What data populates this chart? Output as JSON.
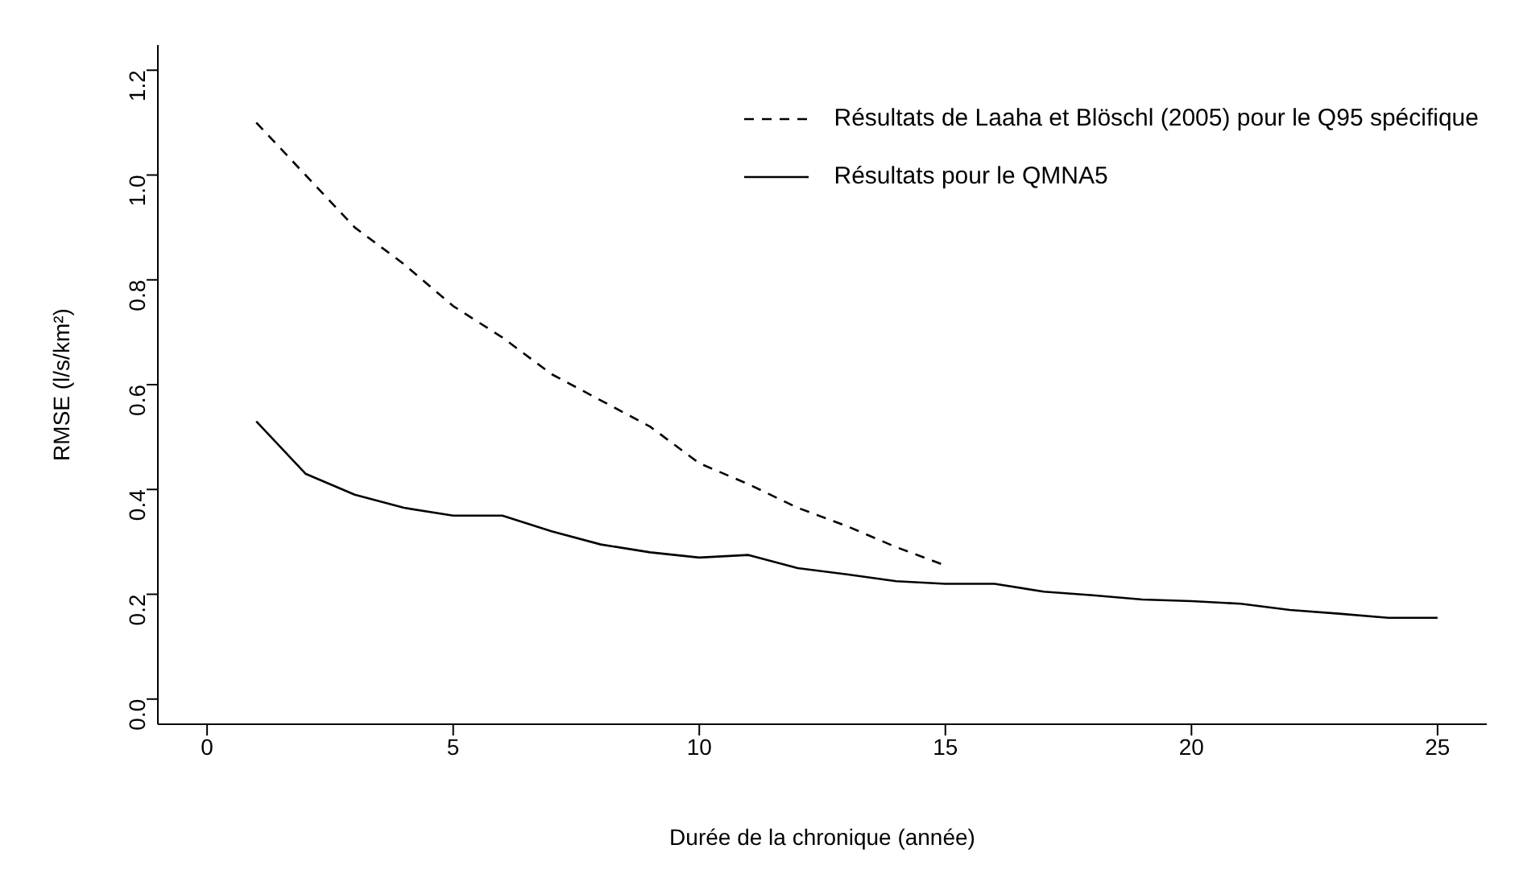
{
  "chart_data": {
    "type": "line",
    "xlabel": "Durée de la chronique (année)",
    "ylabel": "RMSE (l/s/km²)",
    "xlim": [
      -1,
      26
    ],
    "ylim": [
      -0.048,
      1.248
    ],
    "xticks": [
      0,
      5,
      10,
      15,
      20,
      25
    ],
    "yticks": [
      {
        "value": 0,
        "label": "0.0"
      },
      0.2,
      0.4,
      0.6,
      0.8,
      {
        "value": 1,
        "label": "1.0"
      },
      1.2
    ],
    "grid": false,
    "legend": "top right",
    "marker": "none",
    "series": [
      {
        "name": "Résultats de Laaha et Blöschl (2005) pour le Q95 spécifique",
        "color": "#000000",
        "line_style": "dashed",
        "x": [
          1,
          2,
          3,
          4,
          5,
          6,
          7,
          8,
          9,
          10,
          11,
          12,
          13,
          14,
          15
        ],
        "values": [
          1.1,
          1.0,
          0.9,
          0.83,
          0.75,
          0.69,
          0.62,
          0.57,
          0.52,
          0.45,
          0.41,
          0.365,
          0.33,
          0.29,
          0.255
        ]
      },
      {
        "name": "Résultats pour le QMNA5",
        "color": "#000000",
        "line_style": "solid",
        "x": [
          1,
          2,
          3,
          4,
          5,
          6,
          7,
          8,
          9,
          10,
          11,
          12,
          13,
          14,
          15,
          16,
          17,
          18,
          19,
          20,
          21,
          22,
          23,
          24,
          25
        ],
        "values": [
          0.53,
          0.43,
          0.39,
          0.365,
          0.35,
          0.35,
          0.32,
          0.295,
          0.28,
          0.27,
          0.275,
          0.25,
          0.238,
          0.225,
          0.22,
          0.22,
          0.205,
          0.198,
          0.19,
          0.187,
          0.182,
          0.17,
          0.163,
          0.155,
          0.155
        ]
      }
    ]
  }
}
